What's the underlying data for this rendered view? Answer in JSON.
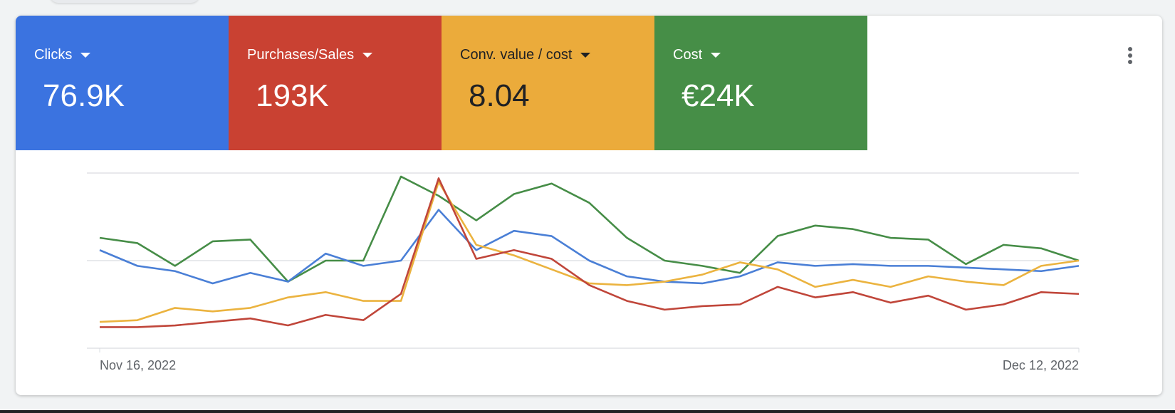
{
  "metrics": [
    {
      "label": "Clicks",
      "value": "76.9K",
      "color": "#3b73e0",
      "text_color": "#ffffff"
    },
    {
      "label": "Purchases/Sales",
      "value": "193K",
      "color": "#c94132",
      "text_color": "#ffffff"
    },
    {
      "label": "Conv. value / cost",
      "value": "8.04",
      "color": "#ebab3b",
      "text_color": "#202124"
    },
    {
      "label": "Cost",
      "value": "€24K",
      "color": "#468e47",
      "text_color": "#ffffff"
    }
  ],
  "chart_data": {
    "type": "line",
    "categories": [
      "Nov 16, 2022",
      null,
      null,
      null,
      null,
      null,
      null,
      null,
      null,
      null,
      null,
      null,
      null,
      null,
      null,
      null,
      null,
      null,
      null,
      null,
      null,
      null,
      null,
      null,
      null,
      null,
      "Dec 12, 2022"
    ],
    "ylim": [
      0,
      100
    ],
    "yticks": [
      0,
      50,
      100
    ],
    "grid": true,
    "series": [
      {
        "color": "#468d47",
        "values": [
          63,
          60,
          47,
          61,
          62,
          38,
          50,
          50,
          98,
          87,
          73,
          88,
          94,
          83,
          63,
          50,
          47,
          43,
          64,
          70,
          68,
          63,
          62,
          48,
          59,
          57,
          50
        ]
      },
      {
        "color": "#4a7fd6",
        "values": [
          56,
          47,
          44,
          37,
          43,
          38,
          54,
          47,
          50,
          79,
          56,
          67,
          64,
          50,
          41,
          38,
          37,
          41,
          49,
          47,
          48,
          47,
          47,
          46,
          45,
          44,
          47
        ]
      },
      {
        "color": "#ebb33f",
        "values": [
          15,
          16,
          23,
          21,
          23,
          29,
          32,
          27,
          27,
          95,
          59,
          53,
          45,
          37,
          36,
          38,
          42,
          49,
          45,
          35,
          39,
          35,
          41,
          38,
          36,
          47,
          50
        ]
      },
      {
        "color": "#c0463a",
        "values": [
          12,
          12,
          13,
          15,
          17,
          13,
          19,
          16,
          31,
          97,
          51,
          56,
          51,
          36,
          27,
          22,
          24,
          25,
          35,
          29,
          32,
          26,
          30,
          22,
          25,
          32,
          31
        ]
      }
    ]
  }
}
